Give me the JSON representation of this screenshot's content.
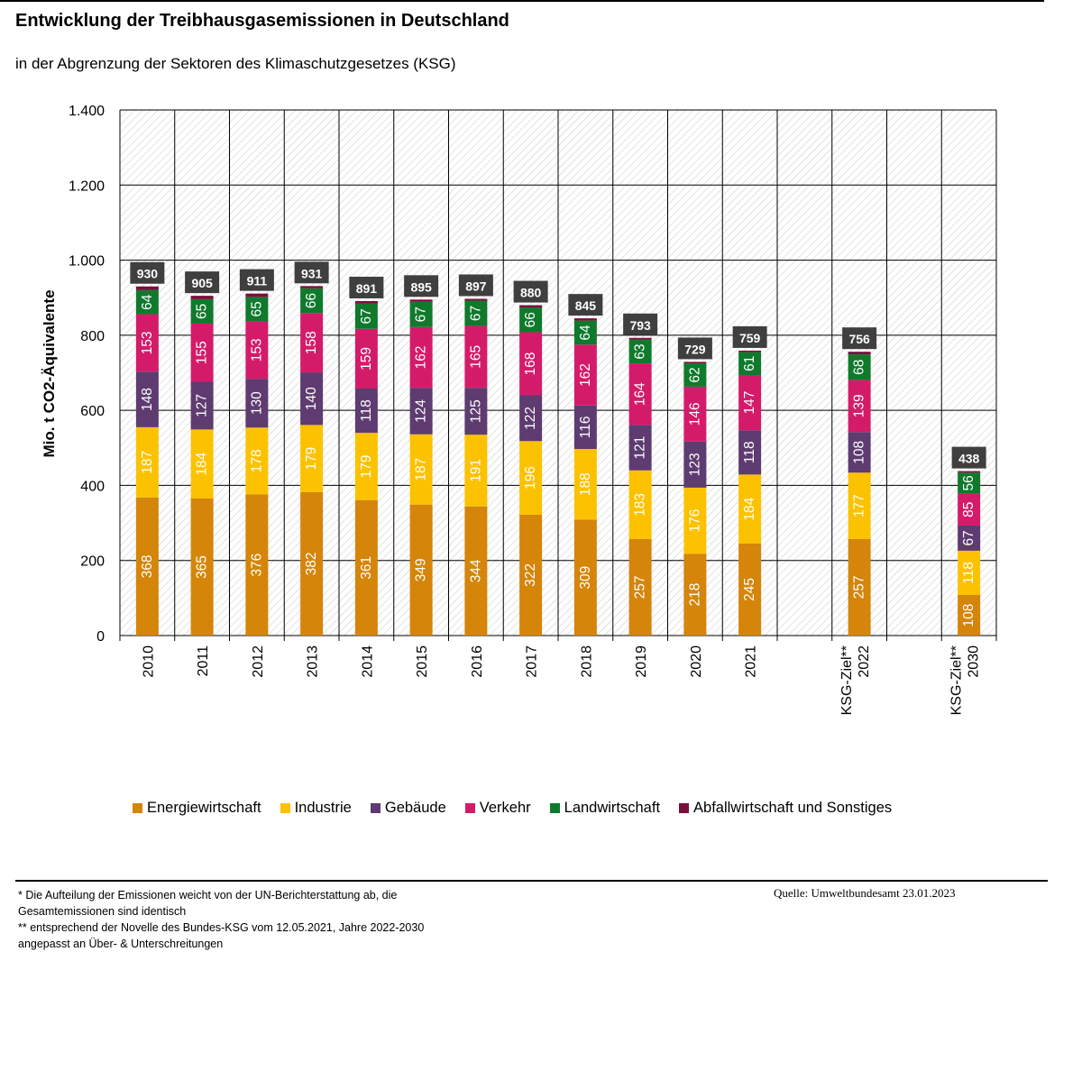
{
  "title": "Entwicklung der Treibhausgasemissionen  in Deutschland",
  "subtitle": "in der Abgrenzung der Sektoren des Klimaschutzgesetzes (KSG)",
  "footnotes": [
    "* Die Aufteilung der Emissionen weicht von der UN-Berichterstattung ab, die",
    "Gesamtemissionen sind identisch",
    "** entsprechend der Novelle des Bundes-KSG vom 12.05.2021, Jahre 2022-2030",
    "angepasst an Über- & Unterschreitungen"
  ],
  "source": "Quelle: Umweltbundesamt 23.01.2023",
  "chart_data": {
    "type": "bar",
    "stacked": true,
    "ylabel": "Mio. t CO2-Äquivalente",
    "xlabel": "",
    "ylim": [
      0,
      1400
    ],
    "yticks": [
      0,
      200,
      400,
      600,
      800,
      1000,
      1200,
      1400
    ],
    "ytick_labels": [
      "0",
      "200",
      "400",
      "600",
      "800",
      "1.000",
      "1.200",
      "1.400"
    ],
    "grid": true,
    "legend_position": "bottom",
    "categories": [
      "2010",
      "2011",
      "2012",
      "2013",
      "2014",
      "2015",
      "2016",
      "2017",
      "2018",
      "2019",
      "2020",
      "2021",
      "",
      "KSG-Ziel** 2022",
      "",
      "KSG-Ziel** 2030"
    ],
    "category_label_lines": [
      [
        "2010"
      ],
      [
        "2011"
      ],
      [
        "2012"
      ],
      [
        "2013"
      ],
      [
        "2014"
      ],
      [
        "2015"
      ],
      [
        "2016"
      ],
      [
        "2017"
      ],
      [
        "2018"
      ],
      [
        "2019"
      ],
      [
        "2020"
      ],
      [
        "2021"
      ],
      [],
      [
        "KSG-Ziel**",
        "2022"
      ],
      [],
      [
        "KSG-Ziel**",
        "2030"
      ]
    ],
    "totals": [
      930,
      905,
      911,
      931,
      891,
      895,
      897,
      880,
      845,
      793,
      729,
      759,
      null,
      756,
      null,
      438
    ],
    "series": [
      {
        "name": "Energiewirtschaft",
        "color": "#d4850a",
        "label_color": "#ffffff",
        "values": [
          368,
          365,
          376,
          382,
          361,
          349,
          344,
          322,
          309,
          257,
          218,
          245,
          null,
          257,
          null,
          108
        ]
      },
      {
        "name": "Industrie",
        "color": "#fcc200",
        "label_color": "#ffffff",
        "values": [
          187,
          184,
          178,
          179,
          179,
          187,
          191,
          196,
          188,
          183,
          176,
          184,
          null,
          177,
          null,
          118
        ]
      },
      {
        "name": "Gebäude",
        "color": "#5e3b70",
        "label_color": "#ffffff",
        "values": [
          148,
          127,
          130,
          140,
          118,
          124,
          125,
          122,
          116,
          121,
          123,
          118,
          null,
          108,
          null,
          67
        ]
      },
      {
        "name": "Verkehr",
        "color": "#d41b6a",
        "label_color": "#ffffff",
        "values": [
          153,
          155,
          153,
          158,
          159,
          162,
          165,
          168,
          162,
          164,
          146,
          147,
          null,
          139,
          null,
          85
        ]
      },
      {
        "name": "Landwirtschaft",
        "color": "#0f7a2c",
        "label_color": "#ffffff",
        "values": [
          64,
          65,
          65,
          66,
          67,
          67,
          67,
          66,
          64,
          63,
          62,
          61,
          null,
          68,
          null,
          56
        ]
      },
      {
        "name": "Abfallwirtschaft und Sonstiges",
        "color": "#7b0f3c",
        "label_color": "#ffffff",
        "values": [
          10,
          9,
          9,
          6,
          7,
          6,
          5,
          6,
          6,
          5,
          4,
          4,
          null,
          7,
          null,
          4
        ]
      }
    ],
    "total_label_bg": "#3f3f3f",
    "total_label_color": "#ffffff"
  }
}
